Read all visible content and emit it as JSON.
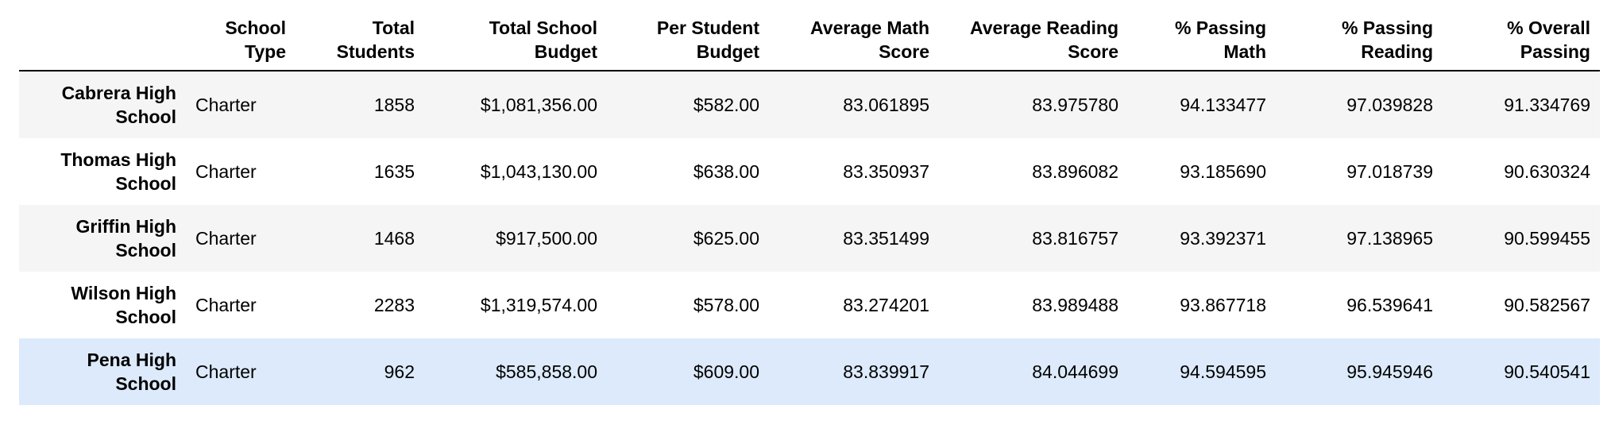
{
  "table": {
    "columns": [
      [
        "",
        ""
      ],
      [
        "School",
        "Type"
      ],
      [
        "Total",
        "Students"
      ],
      [
        "Total School",
        "Budget"
      ],
      [
        "Per Student",
        "Budget"
      ],
      [
        "Average Math",
        "Score"
      ],
      [
        "Average Reading",
        "Score"
      ],
      [
        "% Passing",
        "Math"
      ],
      [
        "% Passing",
        "Reading"
      ],
      [
        "% Overall",
        "Passing"
      ]
    ],
    "rows": [
      {
        "index": [
          "Cabrera High",
          "School"
        ],
        "cells": [
          "Charter",
          "1858",
          "$1,081,356.00",
          "$582.00",
          "83.061895",
          "83.975780",
          "94.133477",
          "97.039828",
          "91.334769"
        ]
      },
      {
        "index": [
          "Thomas High",
          "School"
        ],
        "cells": [
          "Charter",
          "1635",
          "$1,043,130.00",
          "$638.00",
          "83.350937",
          "83.896082",
          "93.185690",
          "97.018739",
          "90.630324"
        ]
      },
      {
        "index": [
          "Griffin High",
          "School"
        ],
        "cells": [
          "Charter",
          "1468",
          "$917,500.00",
          "$625.00",
          "83.351499",
          "83.816757",
          "93.392371",
          "97.138965",
          "90.599455"
        ]
      },
      {
        "index": [
          "Wilson High",
          "School"
        ],
        "cells": [
          "Charter",
          "2283",
          "$1,319,574.00",
          "$578.00",
          "83.274201",
          "83.989488",
          "93.867718",
          "96.539641",
          "90.582567"
        ]
      },
      {
        "index": [
          "Pena High",
          "School"
        ],
        "cells": [
          "Charter",
          "962",
          "$585,858.00",
          "$609.00",
          "83.839917",
          "84.044699",
          "94.594595",
          "95.945946",
          "90.540541"
        ]
      }
    ],
    "hover_row": 4,
    "colors": {
      "stripe": "#f5f5f5",
      "hover": "#dceafb",
      "border": "#000000"
    }
  }
}
